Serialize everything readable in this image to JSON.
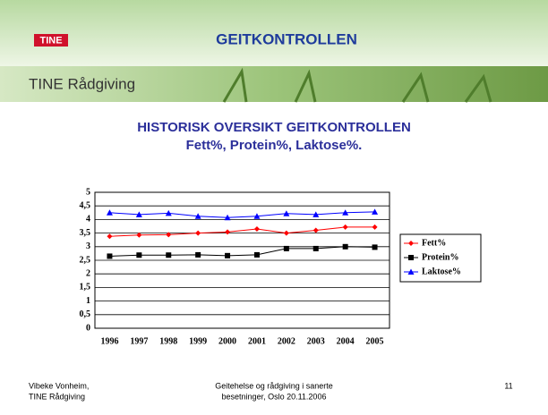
{
  "header": {
    "logo": "TINE",
    "title": "GEITKONTROLLEN",
    "brand": "TINE Rådgiving"
  },
  "chart_data": {
    "type": "line",
    "title": "HISTORISK OVERSIKT GEITKONTROLLEN",
    "subtitle": "Fett%, Protein%, Laktose%.",
    "categories": [
      "1996",
      "1997",
      "1998",
      "1999",
      "2000",
      "2001",
      "2002",
      "2003",
      "2004",
      "2005"
    ],
    "series": [
      {
        "name": "Fett%",
        "color": "#ff0000",
        "marker": "diamond",
        "values": [
          3.38,
          3.43,
          3.44,
          3.5,
          3.54,
          3.65,
          3.5,
          3.6,
          3.72,
          3.72
        ]
      },
      {
        "name": "Protein%",
        "color": "#000000",
        "marker": "square",
        "values": [
          2.65,
          2.69,
          2.69,
          2.7,
          2.67,
          2.7,
          2.93,
          2.93,
          3.0,
          2.98
        ]
      },
      {
        "name": "Laktose%",
        "color": "#0000ff",
        "marker": "triangle",
        "values": [
          4.25,
          4.18,
          4.23,
          4.12,
          4.07,
          4.12,
          4.22,
          4.18,
          4.25,
          4.28
        ]
      }
    ],
    "ylim": [
      0,
      5
    ],
    "yticks": [
      0,
      {
        "value": 0.5,
        "label": "0,5"
      },
      1,
      {
        "value": 1.5,
        "label": "1,5"
      },
      2,
      {
        "value": 2.5,
        "label": "2,5"
      },
      3,
      {
        "value": 3.5,
        "label": "3,5"
      },
      4,
      {
        "value": 4.5,
        "label": "4,5"
      },
      5
    ],
    "grid": true,
    "legend": "right"
  },
  "footer": {
    "author": [
      "Vibeke Vonheim,",
      "TINE Rådgiving"
    ],
    "event": [
      "Geitehelse og rådgiving i sanerte",
      "besetninger, Oslo 20.11.2006"
    ],
    "page": "11"
  }
}
